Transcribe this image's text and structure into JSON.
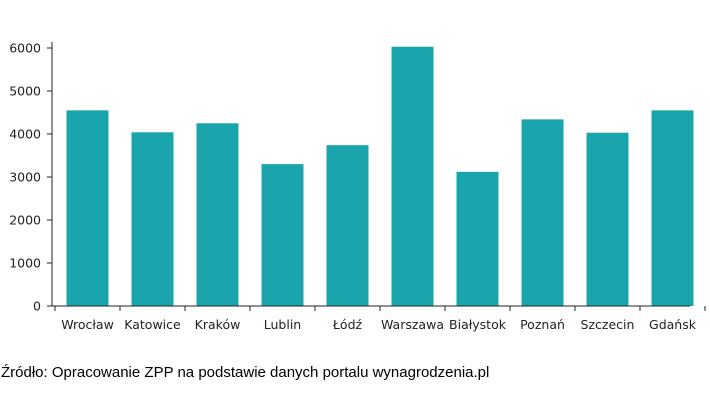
{
  "chart_data": {
    "type": "bar",
    "categories": [
      "Wrocław",
      "Katowice",
      "Kraków",
      "Lublin",
      "Łódź",
      "Warszawa",
      "Białystok",
      "Poznań",
      "Szczecin",
      "Gdańsk"
    ],
    "values": [
      4550,
      4040,
      4250,
      3300,
      3740,
      6030,
      3120,
      4340,
      4030,
      4550
    ],
    "title": "",
    "xlabel": "",
    "ylabel": "",
    "ylim": [
      0,
      6000
    ],
    "yticks": [
      0,
      1000,
      2000,
      3000,
      4000,
      5000,
      6000
    ],
    "grid": false,
    "legend": "none",
    "bar_color": "#1aa5ad",
    "axis_color": "#222222"
  },
  "source_note": "Źródło: Opracowanie ZPP na podstawie danych portalu wynagrodzenia.pl"
}
